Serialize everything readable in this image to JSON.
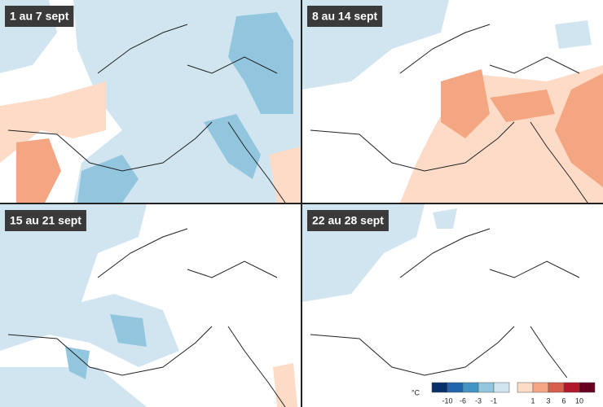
{
  "panels": [
    {
      "label": "1 au 7 sept"
    },
    {
      "label": "8 au 14 sept"
    },
    {
      "label": "15 au 21 sept"
    },
    {
      "label": "22 au 28 sept"
    }
  ],
  "legend": {
    "unit": "°C",
    "colors": [
      "#08306b",
      "#2166ac",
      "#4393c3",
      "#92c5de",
      "#d1e5f0",
      "#fddbc7",
      "#f4a582",
      "#d6604d",
      "#b2182b",
      "#67001f"
    ],
    "ticks": [
      -10,
      -6,
      -3,
      -1,
      1,
      3,
      6,
      10
    ]
  }
}
